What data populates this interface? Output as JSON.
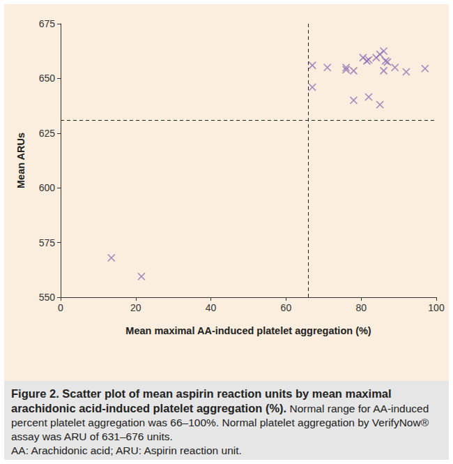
{
  "chart_data": {
    "type": "scatter",
    "title": "Figure 2. Scatter plot of mean aspirin reaction units by mean maximal arachidonic acid-induced platelet aggregation (%).",
    "subtitle": "Normal range for AA-induced percent platelet aggregation was 66–100%. Normal platelet aggregation by VerifyNow® assay was ARU of 631–676 units.",
    "annotations": [
      "AA: Arachidonic acid; ARU: Aspirin reaction unit."
    ],
    "x_label": "Mean maximal AA-induced platelet aggregation (%)",
    "y_label": "Mean ARUs",
    "x": [
      13.5,
      21.5,
      67,
      67,
      71,
      76,
      76,
      78,
      78,
      80.5,
      81.5,
      82,
      82,
      84,
      85,
      85,
      86,
      86,
      86.5,
      87,
      89,
      92,
      97
    ],
    "values": [
      568,
      559.5,
      656,
      646,
      655,
      655,
      654,
      653.5,
      640,
      659.5,
      658,
      658.5,
      641.5,
      659.5,
      661,
      638,
      662.5,
      653.5,
      658,
      657.5,
      655,
      653,
      654.5
    ],
    "color": "#8e6cb5",
    "marker": "x",
    "reference_lines": {
      "x": 66,
      "y": 631
    },
    "xlim": [
      0,
      100
    ],
    "xticks": [
      0,
      20,
      40,
      60,
      80,
      100
    ],
    "ylim": [
      550,
      675
    ],
    "yticks": [
      550,
      575,
      600,
      625,
      650,
      675
    ],
    "grid": false
  }
}
